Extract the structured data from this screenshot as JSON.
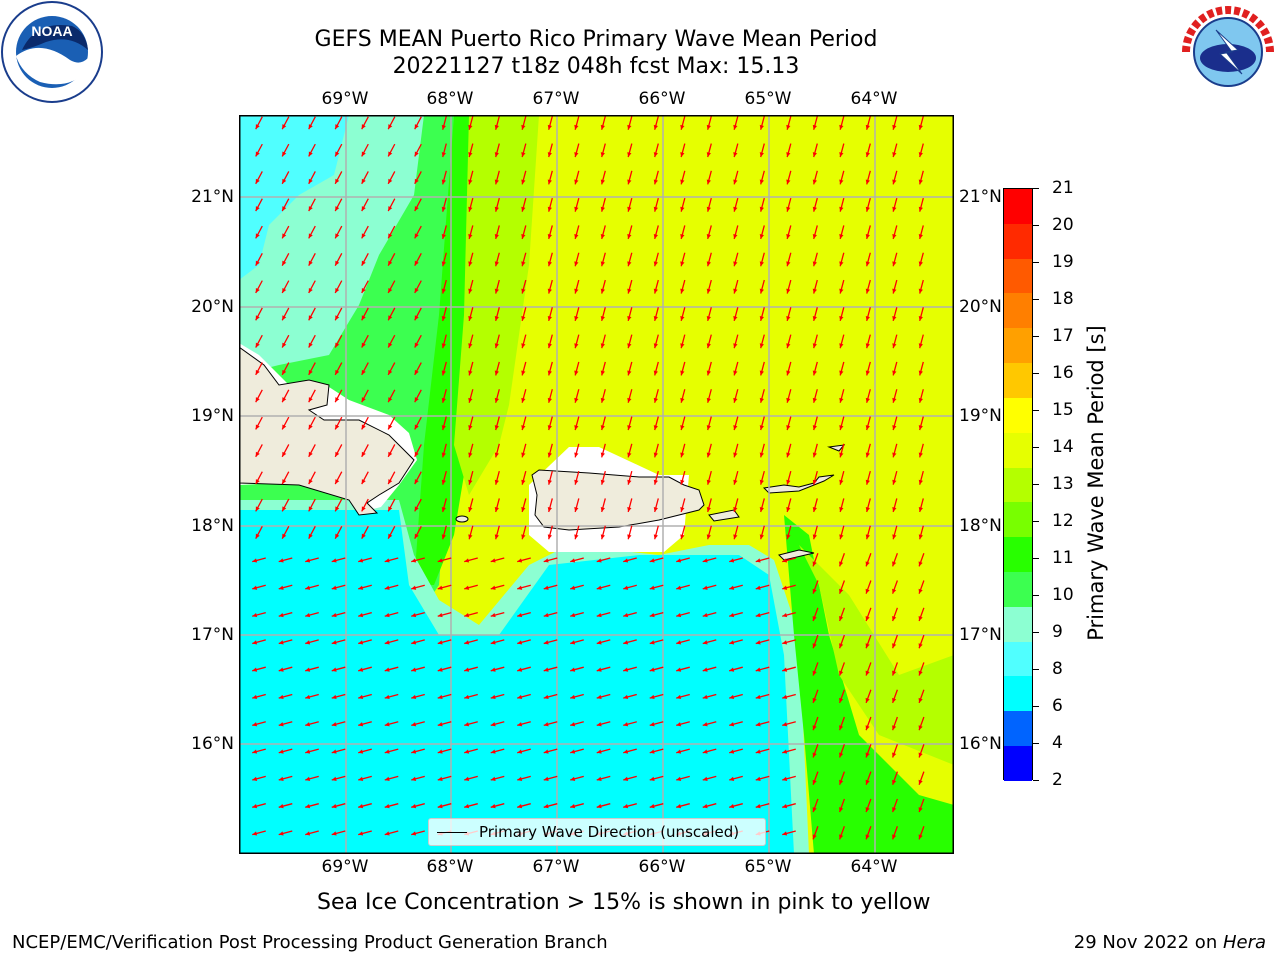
{
  "title_line1": "GEFS MEAN Puerto Rico Primary Wave Mean Period",
  "title_line2": "20221127 t18z 048h fcst   Max: 15.13",
  "lon_ticks": [
    "69°W",
    "68°W",
    "67°W",
    "66°W",
    "65°W",
    "64°W"
  ],
  "lat_ticks": [
    "21°N",
    "20°N",
    "19°N",
    "18°N",
    "17°N",
    "16°N"
  ],
  "legend_label": "Primary Wave Direction (unscaled)",
  "colorbar": {
    "label": "Primary Wave Mean Period [s]",
    "ticks": [
      "21",
      "20",
      "19",
      "18",
      "17",
      "16",
      "15",
      "14",
      "13",
      "12",
      "11",
      "10",
      "9",
      "8",
      "6",
      "4",
      "2"
    ],
    "colors": [
      "#ff0000",
      "#ff2a00",
      "#ff5a00",
      "#ff7f00",
      "#ffa000",
      "#ffc800",
      "#ffff00",
      "#e6ff00",
      "#b4ff00",
      "#78ff00",
      "#28ff00",
      "#3cff50",
      "#8cffd2",
      "#50ffff",
      "#00ffff",
      "#0064ff",
      "#0000ff"
    ]
  },
  "note": "Sea Ice Concentration > 15% is shown in pink to yellow",
  "footer_left": "NCEP/EMC/Verification Post Processing Product Generation Branch",
  "footer_date": "29 Nov 2022 on ",
  "footer_host": "Hera",
  "logos": {
    "left": "noaa-logo",
    "right": "nws-logo"
  },
  "arrow_color": "#ff0000",
  "land_color": "#efecdc"
}
